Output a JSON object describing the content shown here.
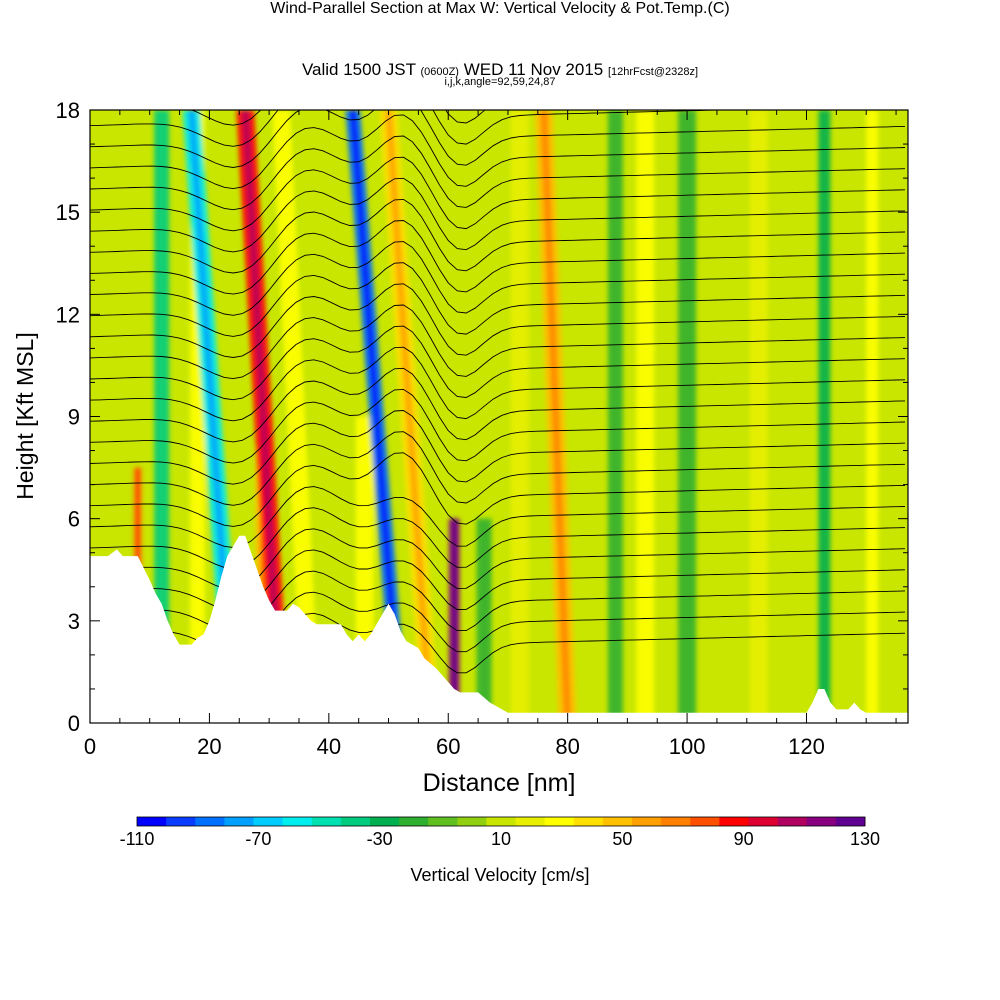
{
  "header": {
    "title": "Wind-Parallel Section at Max W: Vertical Velocity & Pot.Temp.",
    "copyright_mark": "(C)",
    "valid_prefix": "Valid 1500 JST",
    "utc_time": "(0600Z)",
    "valid_date": "WED 11 Nov 2015",
    "forecast_info": "[12hrFcst@2328z]",
    "grid_info": "i,j,k,angle=92,59,24,87"
  },
  "chart_data": {
    "type": "heatmap",
    "title": "Wind-Parallel Section at Max W: Vertical Velocity & Pot.Temp.",
    "xlabel": "Distance [nm]",
    "ylabel": "Height [Kft MSL]",
    "xlim": [
      0,
      137
    ],
    "ylim": [
      0,
      18
    ],
    "x_ticks": [
      "0",
      "20",
      "40",
      "60",
      "80",
      "100",
      "120"
    ],
    "y_ticks": [
      "0",
      "3",
      "6",
      "9",
      "12",
      "15",
      "18"
    ],
    "colorbar": {
      "label": "Vertical Velocity [cm/s]",
      "tick_labels": [
        "-110",
        "-70",
        "-30",
        "10",
        "50",
        "90",
        "130"
      ],
      "min": -110,
      "max": 130,
      "step": 10,
      "colors": [
        "#0000ff",
        "#0a3cff",
        "#0070ff",
        "#00a0ff",
        "#00ccff",
        "#00eeee",
        "#00e0b0",
        "#00cc80",
        "#00b050",
        "#30b030",
        "#60c020",
        "#90d010",
        "#c8e600",
        "#e8f000",
        "#ffff00",
        "#ffe000",
        "#ffc000",
        "#ffa000",
        "#ff8000",
        "#ff5000",
        "#ff0000",
        "#dd0030",
        "#b00060",
        "#880080",
        "#600090"
      ]
    },
    "vertical_velocity_features": [
      {
        "x": 8,
        "w": 1.3,
        "ytop": 7.5,
        "value": 70
      },
      {
        "x": 12,
        "w": 2.5,
        "ytop": 18,
        "value": -35
      },
      {
        "x": 18,
        "w": 2.5,
        "ytop": 18,
        "value": 30
      },
      {
        "x": 24,
        "w": 3,
        "ytop": 18,
        "value": -60,
        "lean": -7
      },
      {
        "x": 29,
        "w": 2.5,
        "ytop": 9,
        "value": 50
      },
      {
        "x": 32,
        "w": 3,
        "ytop": 18,
        "value": 95,
        "lean": -6
      },
      {
        "x": 37,
        "w": 3,
        "ytop": 18,
        "value": 35,
        "lean": -5
      },
      {
        "x": 46,
        "w": 3,
        "ytop": 9,
        "value": 30
      },
      {
        "x": 52,
        "w": 2.5,
        "ytop": 18,
        "value": -90,
        "lean": -8
      },
      {
        "x": 57,
        "w": 3,
        "ytop": 18,
        "value": 45,
        "lean": -7
      },
      {
        "x": 61,
        "w": 1.8,
        "ytop": 6,
        "value": 125
      },
      {
        "x": 66,
        "w": 2.5,
        "ytop": 6,
        "value": -20
      },
      {
        "x": 72,
        "w": 3,
        "ytop": 18,
        "value": 25
      },
      {
        "x": 80,
        "w": 3,
        "ytop": 18,
        "value": 55,
        "lean": -4
      },
      {
        "x": 88,
        "w": 2.5,
        "ytop": 18,
        "value": -20
      },
      {
        "x": 93,
        "w": 3,
        "ytop": 18,
        "value": 30
      },
      {
        "x": 100,
        "w": 3,
        "ytop": 18,
        "value": -15
      },
      {
        "x": 112,
        "w": 3,
        "ytop": 18,
        "value": 25
      },
      {
        "x": 123,
        "w": 2,
        "ytop": 18,
        "value": -25
      },
      {
        "x": 131,
        "w": 2,
        "ytop": 18,
        "value": 30
      }
    ],
    "terrain_top_kft": [
      [
        0,
        4.9
      ],
      [
        3,
        4.9
      ],
      [
        4.5,
        5.1
      ],
      [
        5.5,
        4.9
      ],
      [
        8,
        4.9
      ],
      [
        10,
        4.2
      ],
      [
        11,
        3.8
      ],
      [
        12,
        3.5
      ],
      [
        13,
        3.0
      ],
      [
        14,
        2.6
      ],
      [
        15,
        2.3
      ],
      [
        17,
        2.3
      ],
      [
        18,
        2.5
      ],
      [
        19,
        2.6
      ],
      [
        20,
        3.0
      ],
      [
        21,
        3.6
      ],
      [
        22,
        4.3
      ],
      [
        23,
        4.9
      ],
      [
        25,
        5.5
      ],
      [
        26,
        5.5
      ],
      [
        27,
        5.0
      ],
      [
        28,
        4.5
      ],
      [
        29,
        4.0
      ],
      [
        30,
        3.6
      ],
      [
        31,
        3.3
      ],
      [
        33,
        3.3
      ],
      [
        34,
        3.5
      ],
      [
        35,
        3.4
      ],
      [
        37,
        3.0
      ],
      [
        38,
        2.9
      ],
      [
        42,
        2.9
      ],
      [
        43,
        2.6
      ],
      [
        44,
        2.4
      ],
      [
        45,
        2.6
      ],
      [
        46,
        2.4
      ],
      [
        47,
        2.6
      ],
      [
        48,
        2.9
      ],
      [
        49,
        3.2
      ],
      [
        50,
        3.5
      ],
      [
        51,
        3.2
      ],
      [
        52,
        2.7
      ],
      [
        53,
        2.4
      ],
      [
        55,
        2.2
      ],
      [
        56,
        1.9
      ],
      [
        58,
        1.6
      ],
      [
        59,
        1.4
      ],
      [
        60,
        1.2
      ],
      [
        61,
        1.0
      ],
      [
        62,
        0.9
      ],
      [
        65,
        0.9
      ],
      [
        67,
        0.6
      ],
      [
        69,
        0.4
      ],
      [
        70,
        0.3
      ],
      [
        120,
        0.3
      ],
      [
        121,
        0.6
      ],
      [
        122,
        1.0
      ],
      [
        123,
        1.0
      ],
      [
        124,
        0.6
      ],
      [
        125,
        0.4
      ],
      [
        127,
        0.4
      ],
      [
        128,
        0.6
      ],
      [
        129,
        0.4
      ],
      [
        130,
        0.3
      ],
      [
        137,
        0.3
      ]
    ],
    "isentropes": {
      "count": 34,
      "base_height_kft": 7.0,
      "spacing_kft": 0.62,
      "color": "#000000"
    }
  }
}
